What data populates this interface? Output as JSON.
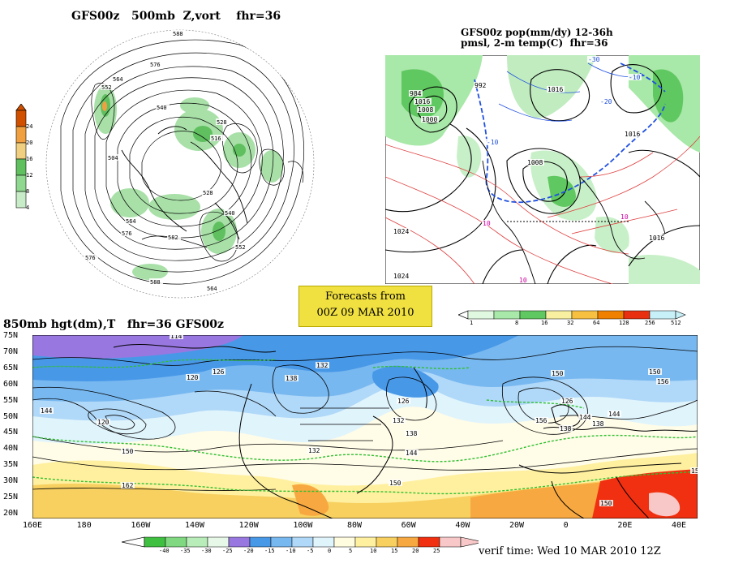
{
  "panel_500mb": {
    "title": "GFS00z   500mb  Z,vort    fhr=36",
    "contour_labels": [
      "588",
      "576",
      "564",
      "552",
      "540",
      "528",
      "516",
      "504",
      "576",
      "564",
      "576",
      "582",
      "588",
      "564",
      "552",
      "540",
      "528"
    ],
    "colorbar": {
      "labels": [
        "24",
        "20",
        "16",
        "12",
        "8",
        "4"
      ],
      "colors": [
        "#d05000",
        "#f0a040",
        "#f0d080",
        "#60c060",
        "#90d890",
        "#c8ecc8"
      ]
    }
  },
  "panel_pop": {
    "title_line1": "GFS00z pop(mm/dy) 12-36h",
    "title_line2": "pmsl, 2-m temp(C)  fhr=36",
    "contour_labels": [
      "1024",
      "1016",
      "1008",
      "1000",
      "984",
      "992",
      "1016",
      "1016",
      "1008",
      "1024",
      "1016",
      "10",
      "10",
      "10",
      "-10",
      "-20",
      "-30",
      "-10"
    ],
    "colorbar": {
      "labels": [
        "1",
        "8",
        "16",
        "32",
        "64",
        "128",
        "256",
        "512"
      ],
      "colors": [
        "#e0f8e0",
        "#a8e8a8",
        "#60c860",
        "#f8f0a0",
        "#f8c040",
        "#f08000",
        "#e83010",
        "#c8f0f8"
      ]
    }
  },
  "forecast_box": {
    "line1": "Forecasts from",
    "line2": "00Z 09 MAR 2010"
  },
  "panel_850mb": {
    "title": "850mb hgt(dm),T   fhr=36 GFS00z",
    "lat_labels": [
      "75N",
      "70N",
      "65N",
      "60N",
      "55N",
      "50N",
      "45N",
      "40N",
      "35N",
      "30N",
      "25N",
      "20N"
    ],
    "lon_labels": [
      "160E",
      "180",
      "160W",
      "140W",
      "120W",
      "100W",
      "80W",
      "60W",
      "40W",
      "20W",
      "0",
      "20E",
      "40E"
    ],
    "contour_labels": [
      "114",
      "120",
      "126",
      "132",
      "138",
      "126",
      "132",
      "138",
      "144",
      "150",
      "156",
      "162",
      "144",
      "120",
      "150",
      "132",
      "150",
      "138",
      "144",
      "138",
      "144",
      "150",
      "156",
      "126",
      "150",
      "15"
    ],
    "colorbar": {
      "labels": [
        "-40",
        "-35",
        "-30",
        "-25",
        "-20",
        "-15",
        "-10",
        "-5",
        "0",
        "5",
        "10",
        "15",
        "20",
        "25"
      ],
      "colors": [
        "#40c040",
        "#80d880",
        "#b8ecb8",
        "#e8f8e8",
        "#9878e0",
        "#4898e8",
        "#78b8f0",
        "#b0d8f8",
        "#e0f4fc",
        "#fffce0",
        "#fff0a0",
        "#f8d060",
        "#f8a840",
        "#f03010",
        "#f8c8c8"
      ]
    }
  },
  "verif_time": "verif time: Wed 10 MAR 2010 12Z"
}
